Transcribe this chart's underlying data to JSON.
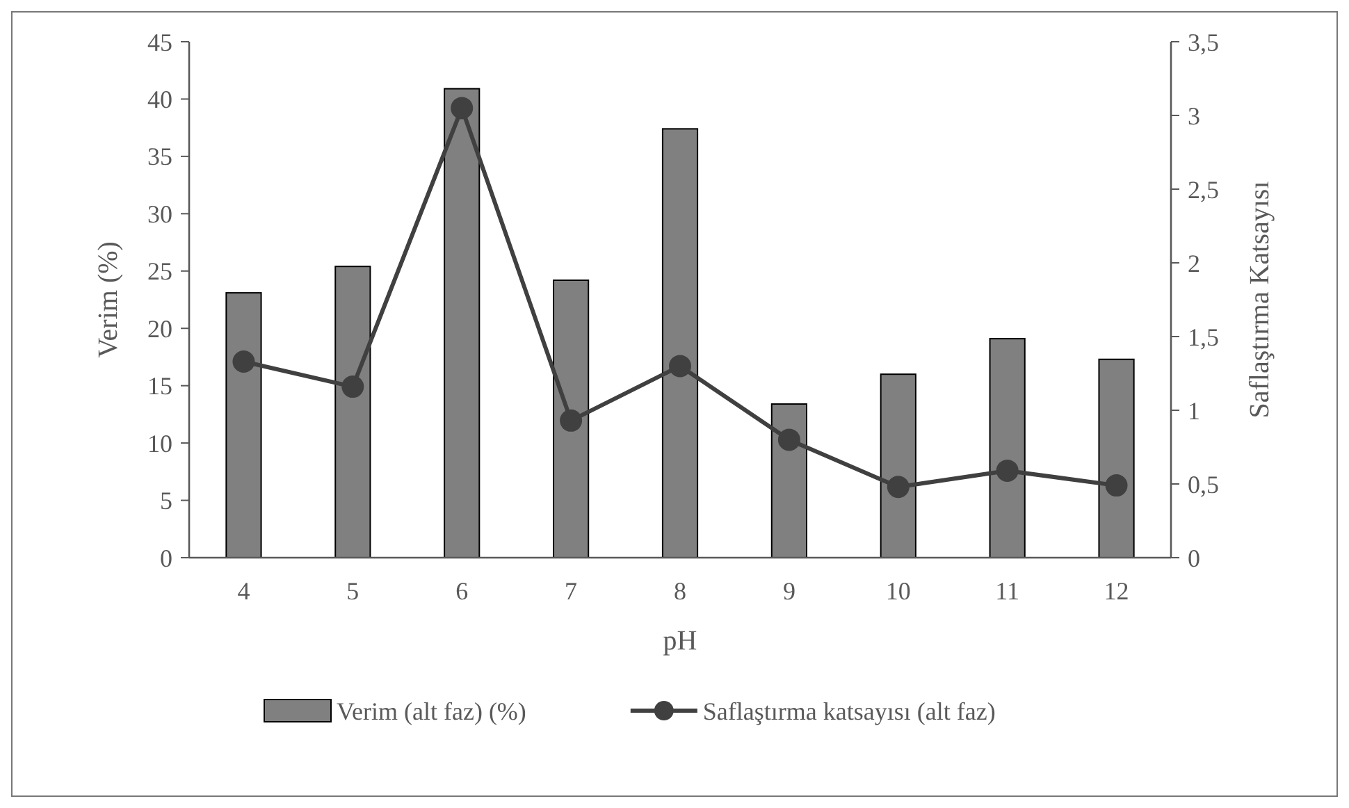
{
  "chart_data": {
    "type": "bar",
    "xlabel": "pH",
    "ylabel": "Verim (%)",
    "y2label": "Saflaştırma Katsayısı",
    "categories": [
      "4",
      "5",
      "6",
      "7",
      "8",
      "9",
      "10",
      "11",
      "12"
    ],
    "series": [
      {
        "name": "Verim (alt faz) (%)",
        "color": "#808080",
        "values": [
          23.1,
          25.4,
          40.9,
          24.2,
          37.4,
          13.4,
          16.0,
          19.1,
          17.3
        ]
      },
      {
        "name": "Saflaştırma katsayısı (alt faz)",
        "type": "line",
        "axis": "y2",
        "color": "#404040",
        "marker": "circle",
        "values": [
          1.33,
          1.16,
          3.05,
          0.93,
          1.3,
          0.8,
          0.48,
          0.59,
          0.49
        ]
      }
    ],
    "ylim": [
      0,
      45
    ],
    "yticks": [
      0,
      5,
      10,
      15,
      20,
      25,
      30,
      35,
      40,
      45
    ],
    "y2lim": [
      0,
      3.5
    ],
    "y2ticks": [
      0,
      {
        "value": 0.5,
        "label": "0,5"
      },
      1,
      {
        "value": 1.5,
        "label": "1,5"
      },
      2,
      {
        "value": 2.5,
        "label": "2,5"
      },
      3,
      {
        "value": 3.5,
        "label": "3,5"
      }
    ],
    "grid": false,
    "legend": "bottom"
  }
}
